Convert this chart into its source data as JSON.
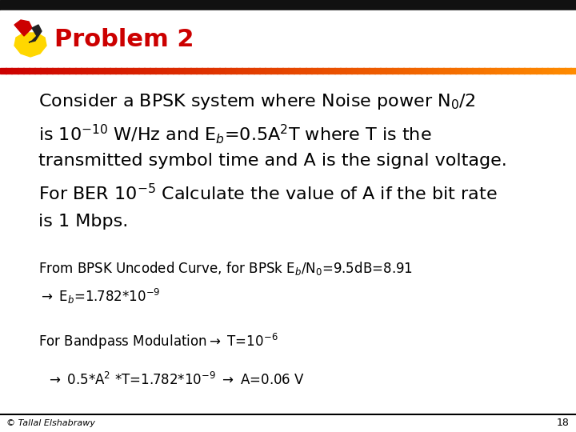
{
  "title": "Problem 2",
  "title_color": "#CC0000",
  "background_color": "#FFFFFF",
  "header_thin_bar_color": "#222222",
  "red_line_color": "#CC0000",
  "orange_line_color": "#FF8C00",
  "footer_text": "© Tallal Elshabrawy",
  "page_number": "18",
  "body_fontsize": 16,
  "sol_fontsize": 12,
  "title_fontsize": 22
}
